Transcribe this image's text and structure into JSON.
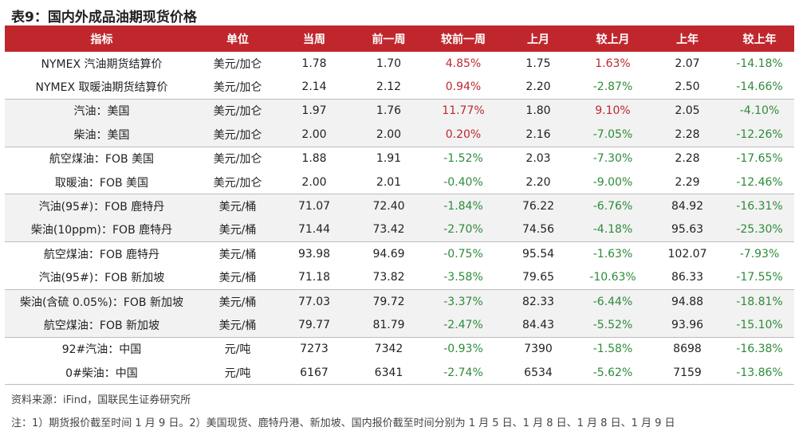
{
  "title": "表9：国内外成品油期现货价格",
  "headers": [
    "指标",
    "单位",
    "当周",
    "前一周",
    "较前一周",
    "上月",
    "较上月",
    "上年",
    "较上年"
  ],
  "rows": [
    {
      "name": "NYMEX 汽油期货结算价",
      "unit": "美元/加仑",
      "cur": "1.78",
      "prev_week": "1.70",
      "wow": "4.85%",
      "prev_month": "1.75",
      "mom": "1.63%",
      "prev_year": "2.07",
      "yoy": "-14.18%"
    },
    {
      "name": "NYMEX 取暖油期货结算价",
      "unit": "美元/加仑",
      "cur": "2.14",
      "prev_week": "2.12",
      "wow": "0.94%",
      "prev_month": "2.20",
      "mom": "-2.87%",
      "prev_year": "2.50",
      "yoy": "-14.66%"
    },
    {
      "name": "汽油：美国",
      "unit": "美元/加仑",
      "cur": "1.97",
      "prev_week": "1.76",
      "wow": "11.77%",
      "prev_month": "1.80",
      "mom": "9.10%",
      "prev_year": "2.05",
      "yoy": "-4.10%"
    },
    {
      "name": "柴油：美国",
      "unit": "美元/加仑",
      "cur": "2.00",
      "prev_week": "2.00",
      "wow": "0.20%",
      "prev_month": "2.16",
      "mom": "-7.05%",
      "prev_year": "2.28",
      "yoy": "-12.26%"
    },
    {
      "name": "航空煤油：FOB 美国",
      "unit": "美元/加仑",
      "cur": "1.88",
      "prev_week": "1.91",
      "wow": "-1.52%",
      "prev_month": "2.03",
      "mom": "-7.30%",
      "prev_year": "2.28",
      "yoy": "-17.65%"
    },
    {
      "name": "取暖油：FOB 美国",
      "unit": "美元/加仑",
      "cur": "2.00",
      "prev_week": "2.01",
      "wow": "-0.40%",
      "prev_month": "2.20",
      "mom": "-9.00%",
      "prev_year": "2.29",
      "yoy": "-12.46%"
    },
    {
      "name": "汽油(95#)：FOB 鹿特丹",
      "unit": "美元/桶",
      "cur": "71.07",
      "prev_week": "72.40",
      "wow": "-1.84%",
      "prev_month": "76.22",
      "mom": "-6.76%",
      "prev_year": "84.92",
      "yoy": "-16.31%"
    },
    {
      "name": "柴油(10ppm)：FOB 鹿特丹",
      "unit": "美元/桶",
      "cur": "71.44",
      "prev_week": "73.42",
      "wow": "-2.70%",
      "prev_month": "74.56",
      "mom": "-4.18%",
      "prev_year": "95.63",
      "yoy": "-25.30%"
    },
    {
      "name": "航空煤油：FOB 鹿特丹",
      "unit": "美元/桶",
      "cur": "93.98",
      "prev_week": "94.69",
      "wow": "-0.75%",
      "prev_month": "95.54",
      "mom": "-1.63%",
      "prev_year": "102.07",
      "yoy": "-7.93%"
    },
    {
      "name": "汽油(95#)：FOB 新加坡",
      "unit": "美元/桶",
      "cur": "71.18",
      "prev_week": "73.82",
      "wow": "-3.58%",
      "prev_month": "79.65",
      "mom": "-10.63%",
      "prev_year": "86.33",
      "yoy": "-17.55%"
    },
    {
      "name": "柴油(含硫 0.05%)：FOB 新加坡",
      "unit": "美元/桶",
      "cur": "77.03",
      "prev_week": "79.72",
      "wow": "-3.37%",
      "prev_month": "82.33",
      "mom": "-6.44%",
      "prev_year": "94.88",
      "yoy": "-18.81%"
    },
    {
      "name": "航空煤油：FOB 新加坡",
      "unit": "美元/桶",
      "cur": "79.77",
      "prev_week": "81.79",
      "wow": "-2.47%",
      "prev_month": "84.43",
      "mom": "-5.52%",
      "prev_year": "93.96",
      "yoy": "-15.10%"
    },
    {
      "name": "92#汽油：中国",
      "unit": "元/吨",
      "cur": "7273",
      "prev_week": "7342",
      "wow": "-0.93%",
      "prev_month": "7390",
      "mom": "-1.58%",
      "prev_year": "8698",
      "yoy": "-16.38%"
    },
    {
      "name": "0#柴油：中国",
      "unit": "元/吨",
      "cur": "6167",
      "prev_week": "6341",
      "wow": "-2.74%",
      "prev_month": "6534",
      "mom": "-5.62%",
      "prev_year": "7159",
      "yoy": "-13.86%"
    }
  ],
  "source": "资料来源：iFind，国联民生证券研究所",
  "note": "注：1）期货报价截至时间 1 月 9 日。2）美国现货、鹿特丹港、新加坡、国内报价截至时间分别为 1 月 5 日、1 月 8 日、1 月 8 日、1 月 9 日",
  "colors": {
    "header_bg": "#c0272d",
    "positive": "#c0272d",
    "negative": "#2e8b3a",
    "shade": "#f2f2f2"
  }
}
